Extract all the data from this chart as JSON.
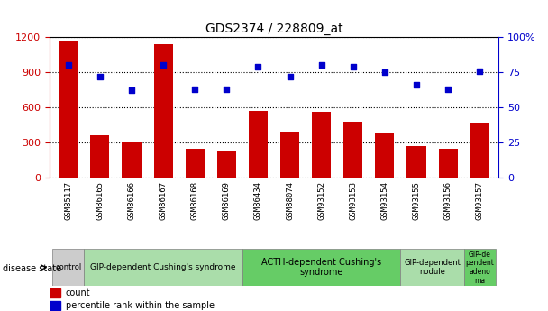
{
  "title": "GDS2374 / 228809_at",
  "categories": [
    "GSM85117",
    "GSM86165",
    "GSM86166",
    "GSM86167",
    "GSM86168",
    "GSM86169",
    "GSM86434",
    "GSM88074",
    "GSM93152",
    "GSM93153",
    "GSM93154",
    "GSM93155",
    "GSM93156",
    "GSM93157"
  ],
  "counts": [
    1170,
    360,
    310,
    1145,
    248,
    228,
    570,
    390,
    565,
    480,
    380,
    268,
    248,
    470
  ],
  "percentile_ranks": [
    80,
    72,
    62,
    80,
    63,
    63,
    79,
    72,
    80,
    79,
    75,
    66,
    63,
    76
  ],
  "bar_color": "#cc0000",
  "dot_color": "#0000cc",
  "ylim_left": [
    0,
    1200
  ],
  "ylim_right": [
    0,
    100
  ],
  "yticks_left": [
    0,
    300,
    600,
    900,
    1200
  ],
  "yticks_right": [
    0,
    25,
    50,
    75,
    100
  ],
  "ylabel_left_color": "#cc0000",
  "ylabel_right_color": "#0000cc",
  "disease_groups": [
    {
      "label": "control",
      "indices": [
        0
      ],
      "color": "#cccccc",
      "text_size": 6
    },
    {
      "label": "GIP-dependent Cushing's syndrome",
      "indices": [
        1,
        2,
        3,
        4,
        5
      ],
      "color": "#aaddaa",
      "text_size": 6.5
    },
    {
      "label": "ACTH-dependent Cushing's\nsyndrome",
      "indices": [
        6,
        7,
        8,
        9,
        10
      ],
      "color": "#66cc66",
      "text_size": 7
    },
    {
      "label": "GIP-dependent\nnodule",
      "indices": [
        11,
        12
      ],
      "color": "#aaddaa",
      "text_size": 6
    },
    {
      "label": "GIP-de\npendent\nadeno\nma",
      "indices": [
        13
      ],
      "color": "#66cc66",
      "text_size": 5.5
    }
  ],
  "legend_count_label": "count",
  "legend_pct_label": "percentile rank within the sample",
  "disease_state_label": "disease state",
  "tick_bg_color": "#cccccc",
  "background_color": "#ffffff"
}
